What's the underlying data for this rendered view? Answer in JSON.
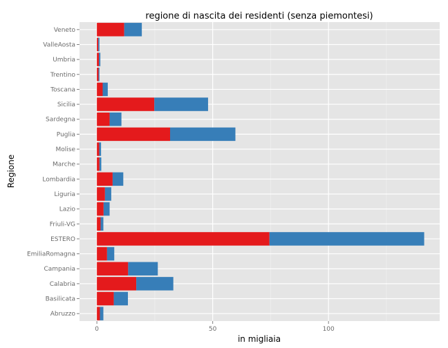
{
  "chart_data": {
    "type": "bar",
    "orientation": "horizontal",
    "stacked": true,
    "title": "regione di nascita dei residenti (senza piemontesi)",
    "xlabel": "in migliaia",
    "ylabel": "Regione",
    "xlim": [
      -7.5,
      148
    ],
    "x_ticks": [
      0,
      50,
      100
    ],
    "grid": true,
    "legend": "none",
    "categories": [
      "Veneto",
      "ValleAosta",
      "Umbria",
      "Trentino",
      "Toscana",
      "Sicilia",
      "Sardegna",
      "Puglia",
      "Molise",
      "Marche",
      "Lombardia",
      "Liguria",
      "Lazio",
      "Friuli-VG",
      "ESTERO",
      "EmiliaRomagna",
      "Campania",
      "Calabria",
      "Basilicata",
      "Abruzzo"
    ],
    "series": [
      {
        "color": "#e41a1c",
        "values": [
          11.8,
          0.6,
          0.9,
          0.7,
          2.5,
          24.8,
          5.5,
          31.6,
          1.0,
          1.1,
          6.8,
          3.5,
          2.9,
          1.6,
          74.5,
          4.4,
          13.5,
          17.0,
          7.3,
          1.3
        ]
      },
      {
        "color": "#377eb8",
        "values": [
          7.6,
          0.5,
          0.6,
          0.4,
          2.2,
          23.2,
          5.1,
          28.2,
          0.8,
          0.8,
          4.6,
          2.7,
          2.6,
          1.2,
          66.8,
          3.1,
          12.8,
          16.0,
          6.1,
          1.5
        ]
      }
    ]
  }
}
